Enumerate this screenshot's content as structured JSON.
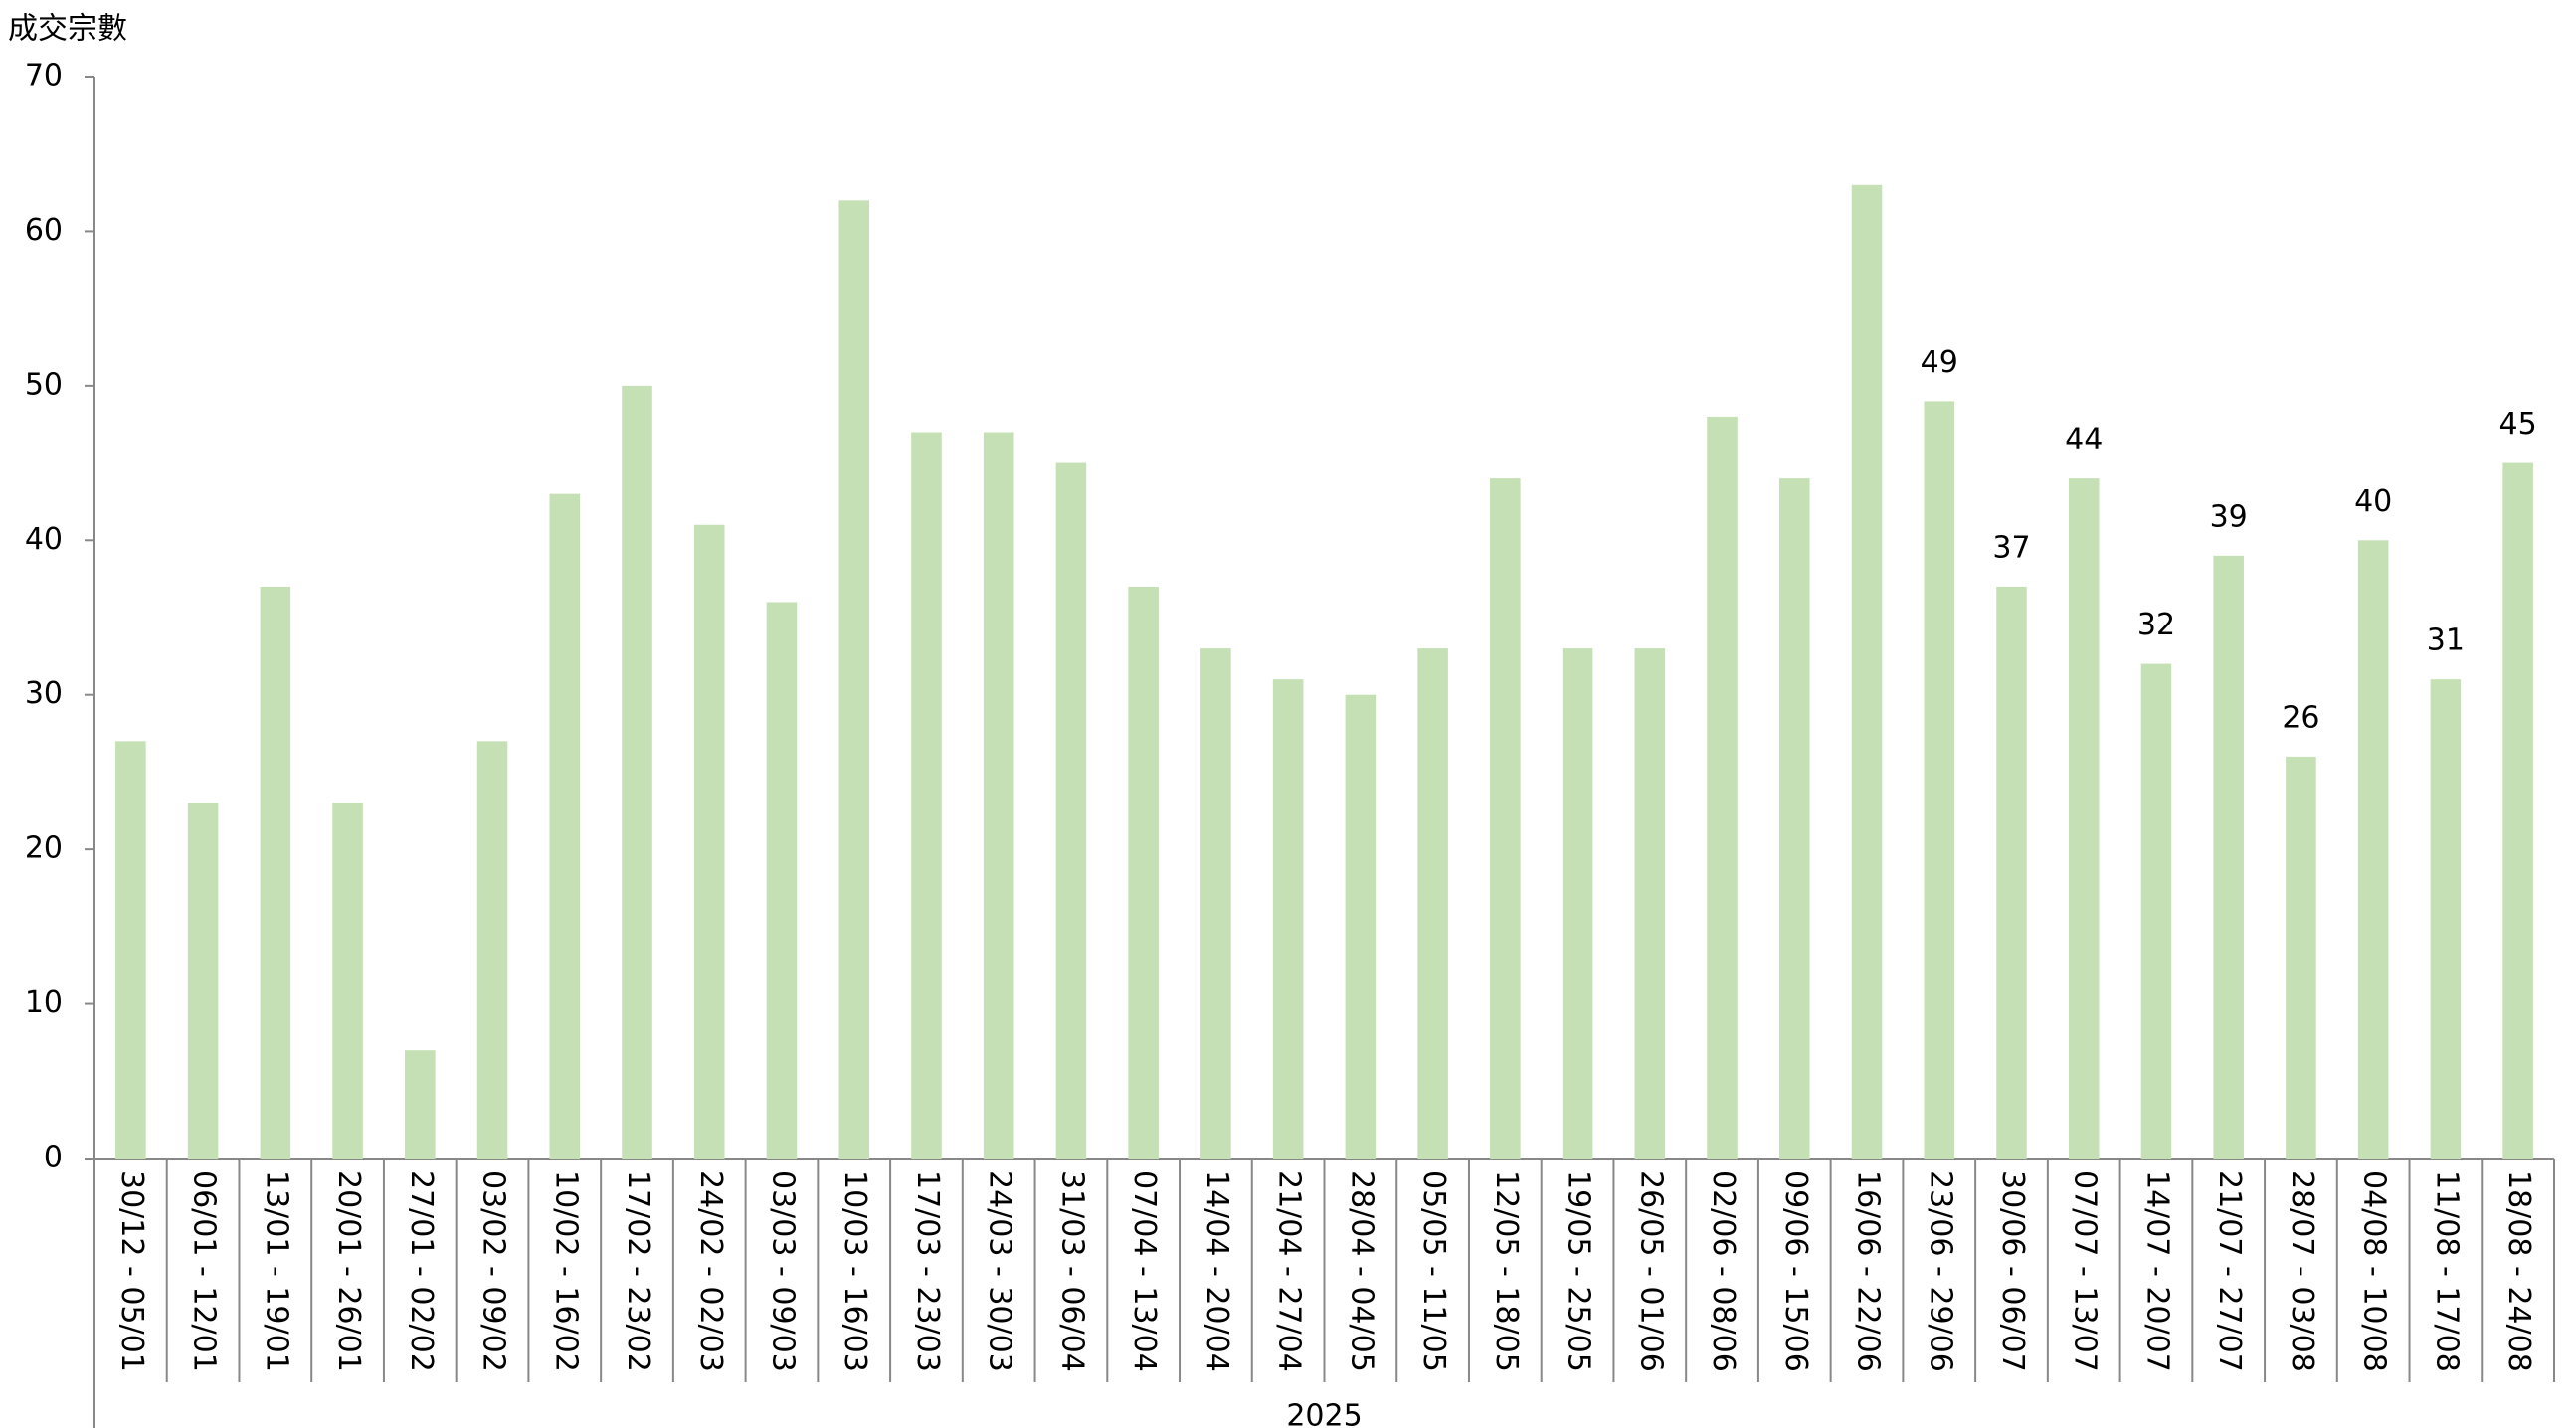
{
  "chart_data": {
    "type": "bar",
    "y_label": "成交宗數",
    "x_group": "2025",
    "categories": [
      "30/12 - 05/01",
      "06/01 - 12/01",
      "13/01 - 19/01",
      "20/01 - 26/01",
      "27/01 - 02/02",
      "03/02 - 09/02",
      "10/02 - 16/02",
      "17/02 - 23/02",
      "24/02 - 02/03",
      "03/03 - 09/03",
      "10/03 - 16/03",
      "17/03 - 23/03",
      "24/03 - 30/03",
      "31/03 - 06/04",
      "07/04 - 13/04",
      "14/04 - 20/04",
      "21/04 - 27/04",
      "28/04 - 04/05",
      "05/05 - 11/05",
      "12/05 - 18/05",
      "19/05 - 25/05",
      "26/05 - 01/06",
      "02/06 - 08/06",
      "09/06 - 15/06",
      "16/06 - 22/06",
      "23/06 - 29/06",
      "30/06 - 06/07",
      "07/07 - 13/07",
      "14/07 - 20/07",
      "21/07 - 27/07",
      "28/07 - 03/08",
      "04/08 - 10/08",
      "11/08 - 17/08",
      "18/08 - 24/08"
    ],
    "values": [
      27,
      23,
      37,
      23,
      7,
      27,
      43,
      50,
      41,
      36,
      62,
      47,
      47,
      45,
      37,
      33,
      31,
      30,
      33,
      44,
      33,
      33,
      48,
      44,
      63,
      49,
      37,
      44,
      32,
      39,
      26,
      40,
      31,
      45
    ],
    "labeled": [
      false,
      false,
      false,
      false,
      false,
      false,
      false,
      false,
      false,
      false,
      false,
      false,
      false,
      false,
      false,
      false,
      false,
      false,
      false,
      false,
      false,
      false,
      false,
      false,
      false,
      true,
      true,
      true,
      true,
      true,
      true,
      true,
      true,
      true
    ],
    "color": "#c5e0b4",
    "ylim": [
      0,
      70
    ],
    "yticks": [
      0,
      10,
      20,
      30,
      40,
      50,
      60,
      70
    ],
    "grid": false
  }
}
